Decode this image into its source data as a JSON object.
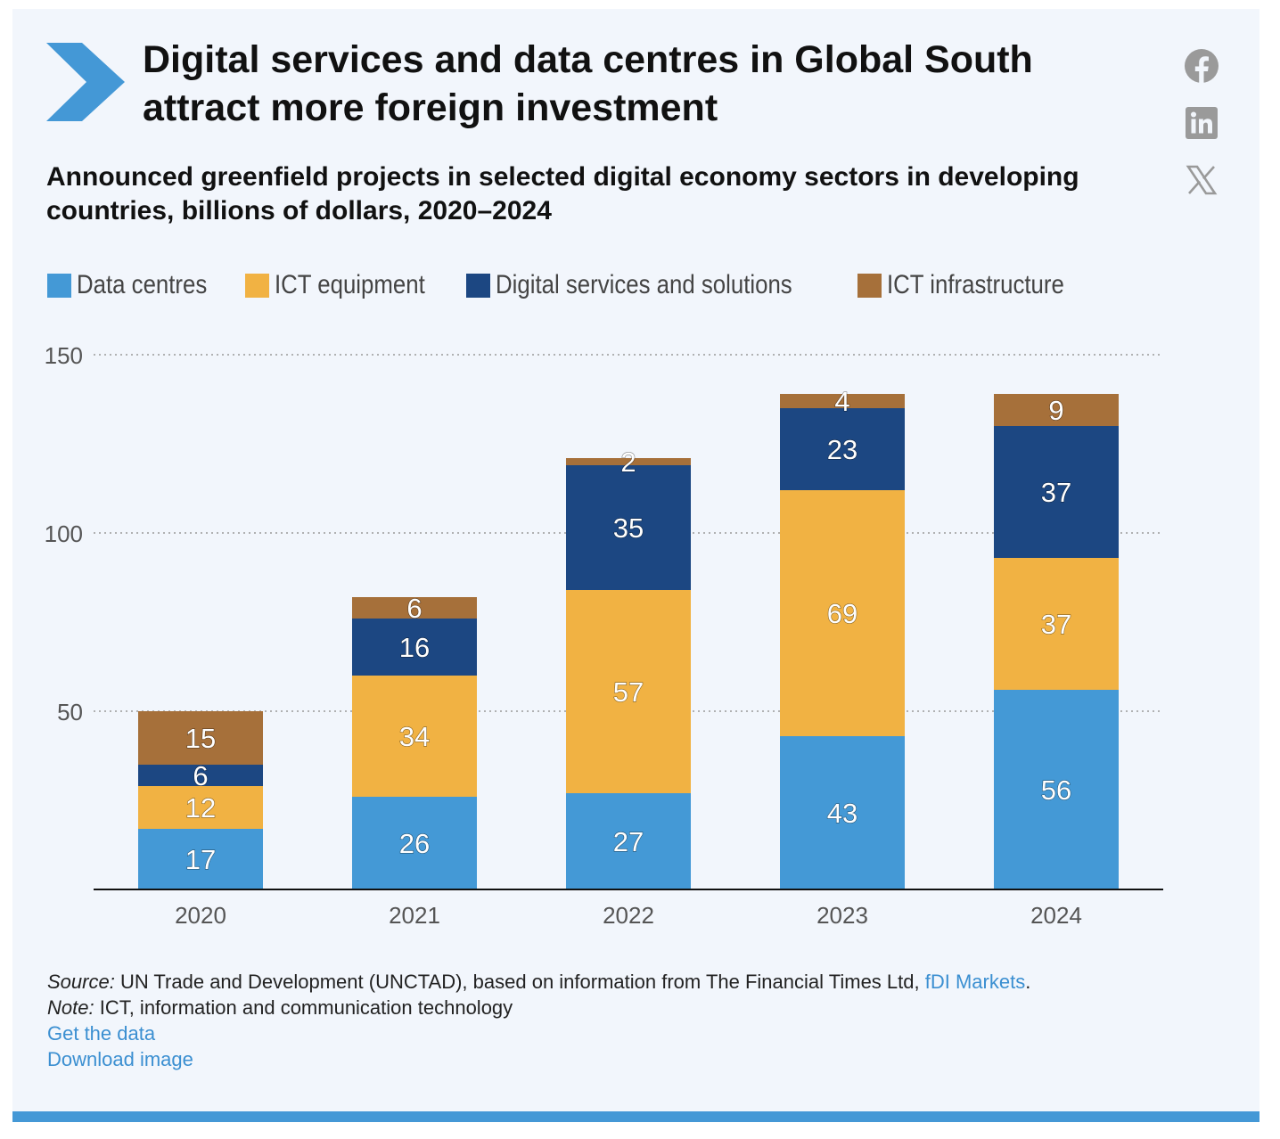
{
  "header": {
    "title": "Digital services and data centres in Global South attract more foreign investment",
    "subtitle": "Announced greenfield projects in selected digital economy sectors in developing countries, billions of dollars, 2020–2024"
  },
  "social": {
    "icons": [
      "facebook-icon",
      "linkedin-icon",
      "x-icon"
    ]
  },
  "colors": {
    "background": "#f2f6fc",
    "accent": "#4498d6"
  },
  "chart_data": {
    "type": "bar",
    "stacked": true,
    "title": "Announced greenfield projects in selected digital economy sectors in developing countries, billions of dollars, 2020–2024",
    "categories": [
      "2020",
      "2021",
      "2022",
      "2023",
      "2024"
    ],
    "series": [
      {
        "name": "Data centres",
        "color": "#4499d6",
        "values": [
          17,
          26,
          27,
          43,
          56
        ]
      },
      {
        "name": "ICT equipment",
        "color": "#f1b243",
        "values": [
          12,
          34,
          57,
          69,
          37
        ]
      },
      {
        "name": "Digital services and solutions",
        "color": "#1c4782",
        "values": [
          6,
          16,
          35,
          23,
          37
        ]
      },
      {
        "name": "ICT infrastructure",
        "color": "#a6703a",
        "values": [
          15,
          6,
          2,
          4,
          9
        ]
      }
    ],
    "ylim": [
      0,
      150
    ],
    "yticks": [
      50,
      100,
      150
    ],
    "grid": true,
    "legend_position": "top-left",
    "xlabel": "",
    "ylabel": ""
  },
  "footer": {
    "source_label": "Source:",
    "source_text": " UN Trade and Development (UNCTAD), based on information from The Financial Times Ltd, ",
    "source_link": "fDI Markets",
    "source_end": ".",
    "note_label": "Note:",
    "note_text": " ICT, information and communication technology",
    "get_data": "Get the data",
    "download": "Download image"
  }
}
